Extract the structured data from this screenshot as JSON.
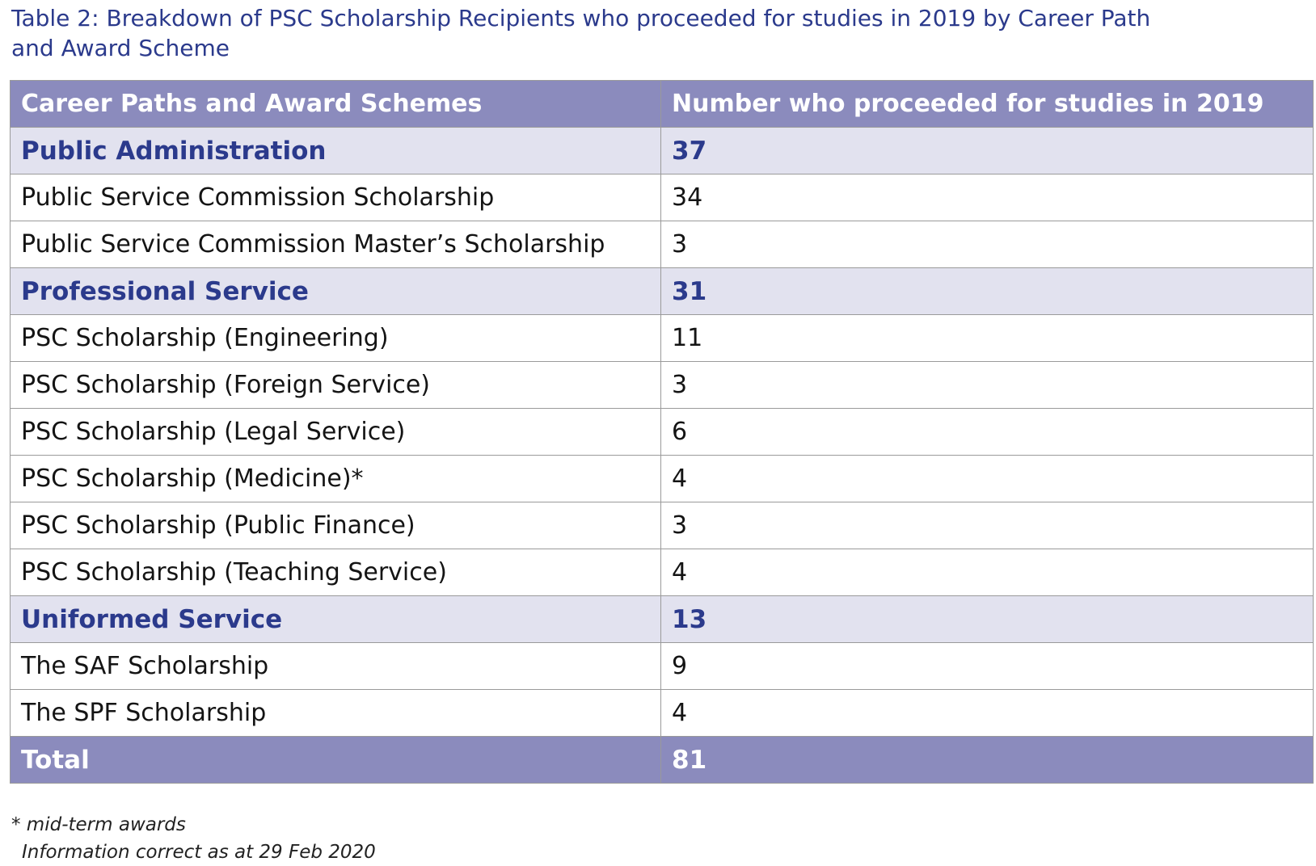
{
  "caption": {
    "line1": "Table 2: Breakdown of PSC Scholarship Recipients who proceeded for studies in 2019 by Career Path",
    "line2": "and Award Scheme"
  },
  "table": {
    "headers": [
      "Career Paths and Award Schemes",
      "Number who proceeded for studies in 2019"
    ],
    "rows": [
      {
        "type": "group",
        "label": "Public Administration",
        "value": "37"
      },
      {
        "type": "item",
        "label": "Public Service Commission Scholarship",
        "value": "34"
      },
      {
        "type": "item",
        "label": "Public Service Commission Master’s Scholarship",
        "value": "3"
      },
      {
        "type": "group",
        "label": "Professional Service",
        "value": "31"
      },
      {
        "type": "item",
        "label": "PSC Scholarship (Engineering)",
        "value": "11"
      },
      {
        "type": "item",
        "label": "PSC Scholarship (Foreign Service)",
        "value": "3"
      },
      {
        "type": "item",
        "label": "PSC Scholarship (Legal Service)",
        "value": "6"
      },
      {
        "type": "item",
        "label": "PSC Scholarship (Medicine)*",
        "value": "4"
      },
      {
        "type": "item",
        "label": "PSC Scholarship (Public Finance)",
        "value": "3"
      },
      {
        "type": "item",
        "label": "PSC Scholarship (Teaching Service)",
        "value": "4"
      },
      {
        "type": "group",
        "label": "Uniformed Service",
        "value": "13"
      },
      {
        "type": "item",
        "label": "The SAF Scholarship",
        "value": "9"
      },
      {
        "type": "item",
        "label": "The SPF Scholarship",
        "value": "4"
      },
      {
        "type": "total",
        "label": "Total",
        "value": "81"
      }
    ]
  },
  "notes": {
    "footnote": "* mid-term awards",
    "info": "Information correct as at 29 Feb 2020"
  },
  "colors": {
    "header_bg": "#8b8bbd",
    "group_bg": "#e2e2ef",
    "accent_text": "#2b3a8c"
  }
}
